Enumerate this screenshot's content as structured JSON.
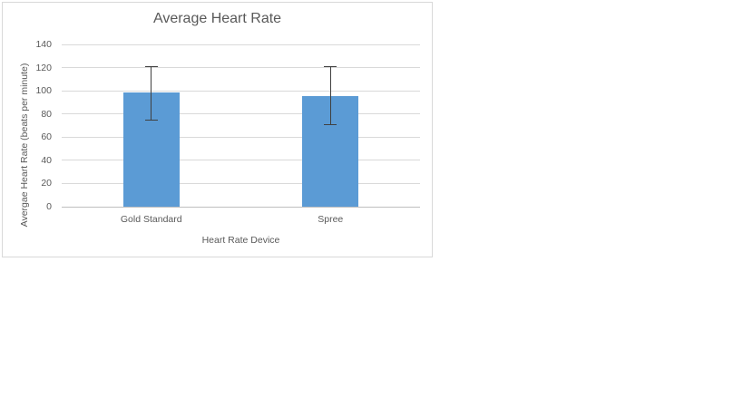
{
  "chart_data": {
    "type": "bar",
    "title": "Average Heart Rate",
    "xlabel": "Heart Rate Device",
    "ylabel": "Avergae Heart Rate (beats per minute)",
    "categories": [
      "Gold Standard",
      "Spree"
    ],
    "values": [
      98.5,
      95.5
    ],
    "error_bars": {
      "low": [
        75,
        71
      ],
      "high": [
        121.5,
        121.5
      ]
    },
    "ylim": [
      0,
      140
    ],
    "ytick_step": 20,
    "ytick_labels": [
      "0",
      "20",
      "40",
      "60",
      "80",
      "100",
      "120",
      "140"
    ],
    "grid": true,
    "legend": false,
    "bar_color": "#5b9bd5",
    "error_bar_color": "#404040",
    "gridline_color": "#d9d9d9",
    "axis_line_color": "#bfbfbf",
    "text_color": "#595959",
    "chart_border_color": "#d9d9d9"
  }
}
